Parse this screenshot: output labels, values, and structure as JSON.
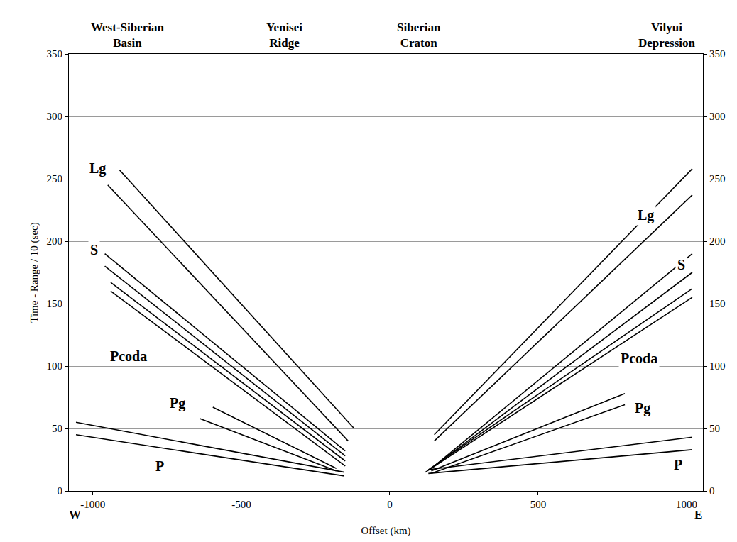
{
  "chart_data": {
    "type": "line",
    "xlabel": "Offset (km)",
    "ylabel": "Time - Range / 10 (sec)",
    "xlim": [
      -1081,
      1055
    ],
    "xticks": [
      -1000,
      -500,
      0,
      500,
      1000
    ],
    "ylim": [
      0,
      350
    ],
    "yticks": [
      0,
      50,
      100,
      150,
      200,
      250,
      300,
      350
    ],
    "y2lim": [
      0,
      350
    ],
    "y2ticks": [
      0,
      50,
      100,
      150,
      200,
      250,
      300,
      350
    ],
    "grid": "y",
    "regions": [
      {
        "text": "West-Siberian Basin",
        "x": -883
      },
      {
        "text": "Yenisei Ridge",
        "x": -356
      },
      {
        "text": "Siberian Craton",
        "x": 98
      },
      {
        "text": "Vilyui Depression",
        "x": 935
      }
    ],
    "ends": [
      {
        "text": "W",
        "x": -1060
      },
      {
        "text": "E",
        "x": 1040
      }
    ],
    "annotations": [
      {
        "text": "Lg",
        "x": -985,
        "y": 258
      },
      {
        "text": "S",
        "x": -995,
        "y": 193
      },
      {
        "text": "Pcoda",
        "x": -880,
        "y": 108
      },
      {
        "text": "Pg",
        "x": -715,
        "y": 70
      },
      {
        "text": "P",
        "x": -775,
        "y": 20
      },
      {
        "text": "Lg",
        "x": 862,
        "y": 221
      },
      {
        "text": "S",
        "x": 983,
        "y": 181
      },
      {
        "text": "Pcoda",
        "x": 840,
        "y": 106
      },
      {
        "text": "Pg",
        "x": 852,
        "y": 66
      },
      {
        "text": "P",
        "x": 971,
        "y": 21
      }
    ],
    "series": [
      {
        "name": "P",
        "color": "#000000",
        "x": [
          -1057,
          -153
        ],
        "y": [
          45,
          12
        ]
      },
      {
        "name": "P",
        "color": "#000000",
        "x": [
          -1057,
          -153
        ],
        "y": [
          55,
          15
        ]
      },
      {
        "name": "Pg",
        "color": "#000000",
        "x": [
          -596,
          -180
        ],
        "y": [
          67,
          18
        ]
      },
      {
        "name": "Pg",
        "color": "#000000",
        "x": [
          -640,
          -180
        ],
        "y": [
          58,
          16
        ]
      },
      {
        "name": "S",
        "color": "#000000",
        "x": [
          -960,
          -150
        ],
        "y": [
          190,
          32
        ]
      },
      {
        "name": "S",
        "color": "#000000",
        "x": [
          -960,
          -150
        ],
        "y": [
          180,
          28
        ]
      },
      {
        "name": "S",
        "color": "#000000",
        "x": [
          -940,
          -150
        ],
        "y": [
          167,
          24
        ]
      },
      {
        "name": "S",
        "color": "#000000",
        "x": [
          -940,
          -150
        ],
        "y": [
          160,
          20
        ]
      },
      {
        "name": "Lg",
        "color": "#000000",
        "x": [
          -910,
          -120
        ],
        "y": [
          257,
          50
        ]
      },
      {
        "name": "Lg",
        "color": "#000000",
        "x": [
          -950,
          -140
        ],
        "y": [
          245,
          40
        ]
      },
      {
        "name": "P",
        "color": "#000000",
        "axis": "y2",
        "x": [
          130,
          1019
        ],
        "y": [
          14,
          33
        ]
      },
      {
        "name": "P",
        "color": "#000000",
        "axis": "y2",
        "x": [
          130,
          1019
        ],
        "y": [
          17,
          43
        ]
      },
      {
        "name": "Pg",
        "color": "#000000",
        "axis": "y2",
        "x": [
          140,
          792
        ],
        "y": [
          16,
          78
        ]
      },
      {
        "name": "Pg",
        "color": "#000000",
        "axis": "y2",
        "x": [
          140,
          792
        ],
        "y": [
          14,
          69
        ]
      },
      {
        "name": "S",
        "color": "#000000",
        "axis": "y2",
        "x": [
          150,
          1019
        ],
        "y": [
          20,
          190
        ]
      },
      {
        "name": "S",
        "color": "#000000",
        "axis": "y2",
        "x": [
          140,
          1019
        ],
        "y": [
          18,
          175
        ]
      },
      {
        "name": "S",
        "color": "#000000",
        "axis": "y2",
        "x": [
          130,
          1019
        ],
        "y": [
          17,
          162
        ]
      },
      {
        "name": "S",
        "color": "#000000",
        "axis": "y2",
        "x": [
          120,
          1019
        ],
        "y": [
          15,
          155
        ]
      },
      {
        "name": "Lg",
        "color": "#000000",
        "axis": "y2",
        "x": [
          150,
          1019
        ],
        "y": [
          45,
          258
        ]
      },
      {
        "name": "Lg",
        "color": "#000000",
        "axis": "y2",
        "x": [
          150,
          1019
        ],
        "y": [
          40,
          237
        ]
      }
    ]
  }
}
